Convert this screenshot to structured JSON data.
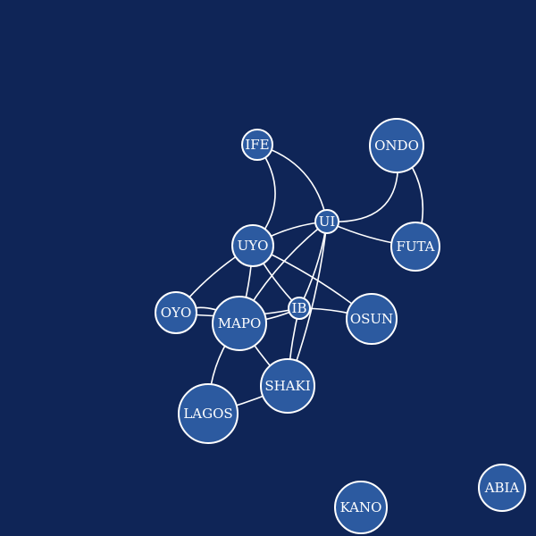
{
  "colors": {
    "background": "#0f2557",
    "node_fill": "#2c5aa0",
    "stroke": "#ffffff",
    "label": "#ffffff"
  },
  "nodes": [
    {
      "id": "ife",
      "label": "IFE"
    },
    {
      "id": "ondo",
      "label": "ONDO"
    },
    {
      "id": "ui",
      "label": "UI"
    },
    {
      "id": "uyo",
      "label": "UYO"
    },
    {
      "id": "futa",
      "label": "FUTA"
    },
    {
      "id": "oyo",
      "label": "OYO"
    },
    {
      "id": "mapo",
      "label": "MAPO"
    },
    {
      "id": "ib",
      "label": "IB"
    },
    {
      "id": "osun",
      "label": "OSUN"
    },
    {
      "id": "shaki",
      "label": "SHAKI"
    },
    {
      "id": "lagos",
      "label": "LAGOS"
    },
    {
      "id": "kano",
      "label": "KANO"
    },
    {
      "id": "abia",
      "label": "ABIA"
    }
  ],
  "edges": [
    [
      "ife",
      "uyo"
    ],
    [
      "ife",
      "ui"
    ],
    [
      "ondo",
      "ui"
    ],
    [
      "ondo",
      "futa"
    ],
    [
      "ui",
      "futa"
    ],
    [
      "ui",
      "uyo"
    ],
    [
      "ui",
      "mapo"
    ],
    [
      "ui",
      "ib"
    ],
    [
      "ui",
      "shaki"
    ],
    [
      "uyo",
      "oyo"
    ],
    [
      "uyo",
      "mapo"
    ],
    [
      "uyo",
      "ib"
    ],
    [
      "uyo",
      "osun"
    ],
    [
      "oyo",
      "mapo"
    ],
    [
      "oyo",
      "ib"
    ],
    [
      "mapo",
      "ib"
    ],
    [
      "mapo",
      "shaki"
    ],
    [
      "mapo",
      "lagos"
    ],
    [
      "ib",
      "osun"
    ],
    [
      "ib",
      "shaki"
    ],
    [
      "shaki",
      "lagos"
    ]
  ]
}
